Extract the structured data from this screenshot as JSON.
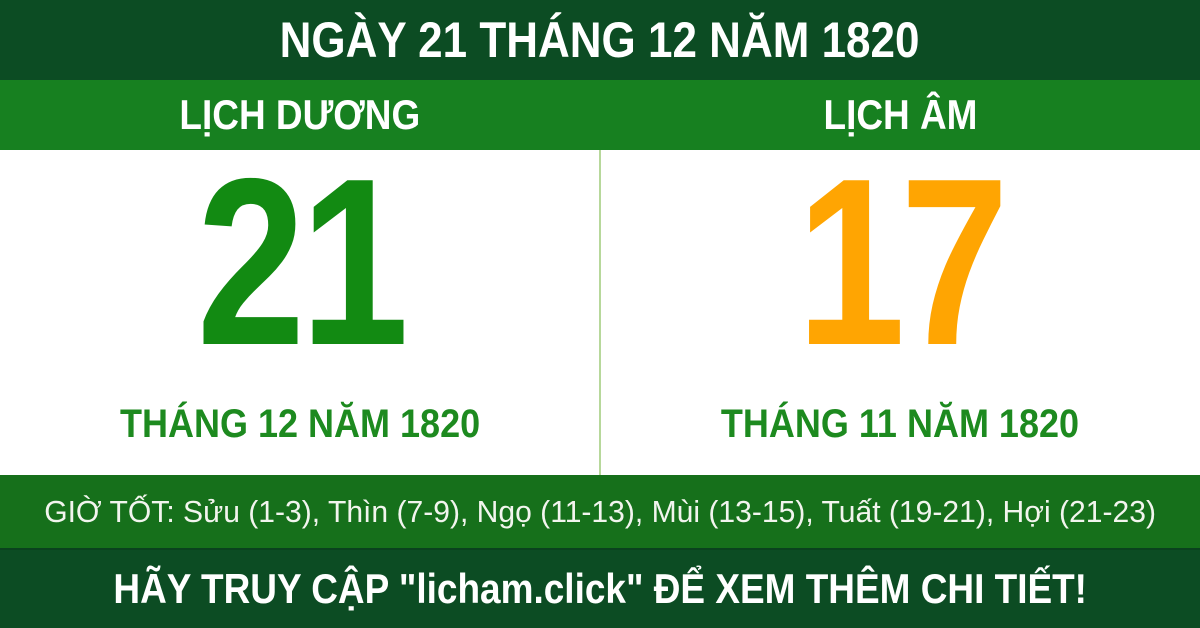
{
  "header": {
    "title": "NGÀY 21 THÁNG 12 NĂM 1820"
  },
  "calendar": {
    "solar": {
      "label": "LỊCH DƯƠNG",
      "day": "21",
      "month_year": "THÁNG 12 NĂM 1820"
    },
    "lunar": {
      "label": "LỊCH ÂM",
      "day": "17",
      "month_year": "THÁNG 11 NĂM 1820"
    }
  },
  "good_hours": {
    "text": "GIỜ TỐT: Sửu (1-3), Thìn (7-9), Ngọ (11-13), Mùi (13-15), Tuất (19-21), Hợi (21-23)"
  },
  "footer": {
    "text": "HÃY TRUY CẬP \"licham.click\" ĐỂ XEM THÊM CHI TIẾT!"
  },
  "colors": {
    "dark_green_band": "#0c4c23",
    "bright_green_band": "#178020",
    "good_hours_band_green": "#16701b",
    "solar_day_green": "#128a12",
    "lunar_day_orange": "#ffa502",
    "month_label_green": "#1d8a1f",
    "divider_light_green": "#b7d89b",
    "text_white": "#ffffff"
  }
}
